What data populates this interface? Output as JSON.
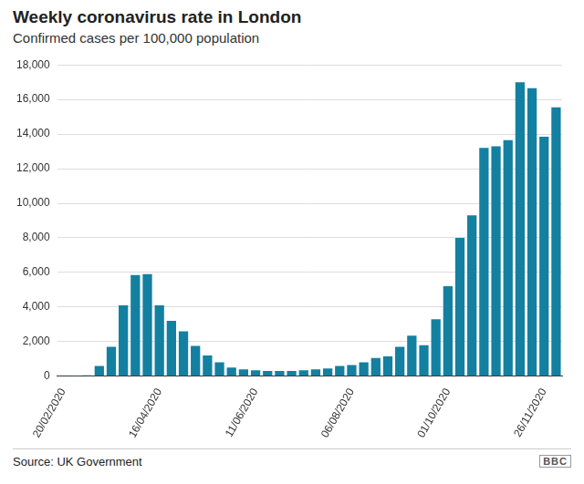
{
  "chart_data": {
    "type": "bar",
    "title": "Weekly coronavirus rate in London",
    "subtitle": "Confirmed cases per 100,000 population",
    "source": "Source: UK Government",
    "logo": "BBC",
    "categories": [
      "20/02/2020",
      null,
      null,
      null,
      null,
      null,
      null,
      null,
      "16/04/2020",
      null,
      null,
      null,
      null,
      null,
      null,
      null,
      "11/06/2020",
      null,
      null,
      null,
      null,
      null,
      null,
      null,
      "06/08/2020",
      null,
      null,
      null,
      null,
      null,
      null,
      null,
      "01/10/2020",
      null,
      null,
      null,
      null,
      null,
      null,
      null,
      "26/11/2020",
      null
    ],
    "values": [
      0,
      10,
      50,
      600,
      1700,
      4100,
      5850,
      5900,
      4100,
      3200,
      2600,
      1750,
      1200,
      800,
      500,
      400,
      350,
      300,
      300,
      300,
      350,
      400,
      450,
      600,
      650,
      800,
      1050,
      1150,
      1700,
      2350,
      1800,
      3300,
      5200,
      8000,
      9300,
      13200,
      13300,
      13650,
      17000,
      16650,
      13850,
      15550
    ],
    "color": "#1380a1",
    "ylim": [
      0,
      18000
    ],
    "yticks": [
      0,
      {
        "value": 2000,
        "label": "2,000"
      },
      {
        "value": 4000,
        "label": "4,000"
      },
      {
        "value": 6000,
        "label": "6,000"
      },
      {
        "value": 8000,
        "label": "8,000"
      },
      {
        "value": 10000,
        "label": "10,000"
      },
      {
        "value": 12000,
        "label": "12,000"
      },
      {
        "value": 14000,
        "label": "14,000"
      },
      {
        "value": 16000,
        "label": "16,000"
      },
      {
        "value": 18000,
        "label": "18,000"
      }
    ],
    "grid": true
  }
}
